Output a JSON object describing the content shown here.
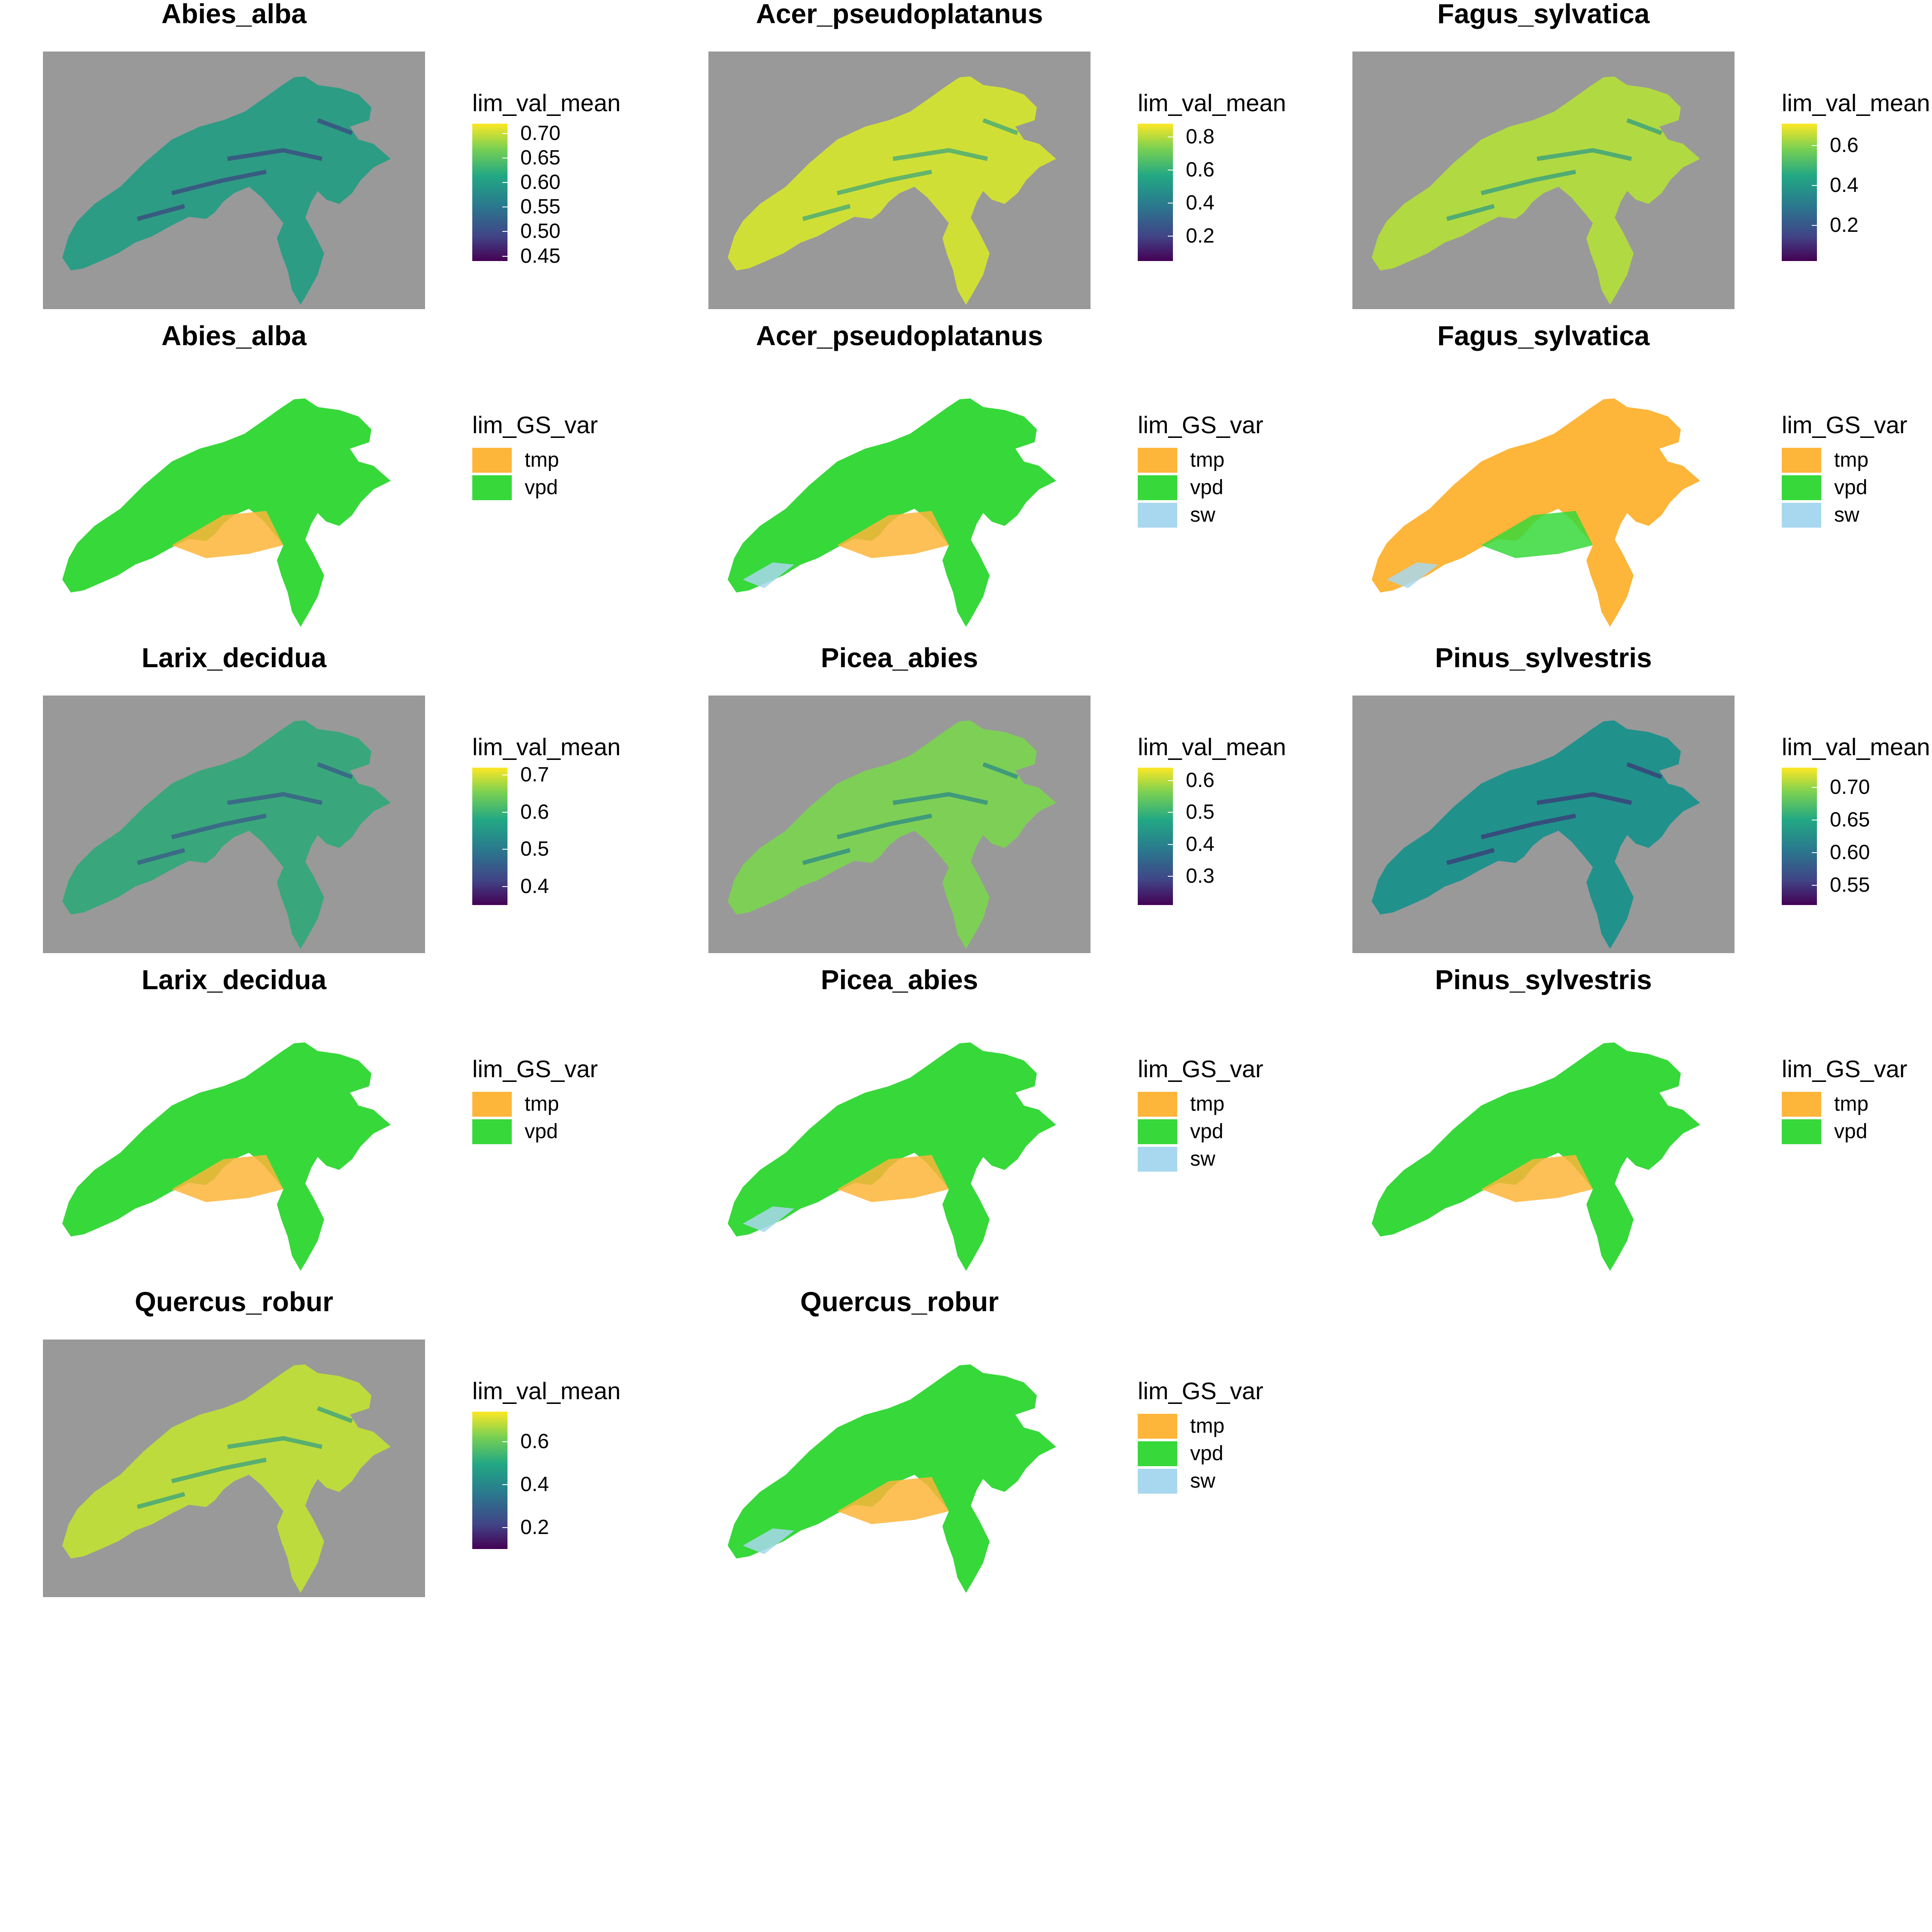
{
  "colors": {
    "tmp": "#FDB53A",
    "vpd": "#37D83A",
    "sw": "#A8D8EF",
    "background": "#999999"
  },
  "chart_data": [
    {
      "type": "heatmap",
      "title": "Abies_alba",
      "legend_title": "lim_val_mean",
      "scale": "viridis",
      "range": [
        0.44,
        0.72
      ],
      "ticks": [
        "0.70",
        "0.65",
        "0.60",
        "0.55",
        "0.50",
        "0.45"
      ],
      "tick_values": [
        0.7,
        0.65,
        0.6,
        0.55,
        0.5,
        0.45
      ],
      "color_hint": 0.55
    },
    {
      "type": "heatmap",
      "title": "Acer_pseudoplatanus",
      "legend_title": "lim_val_mean",
      "scale": "viridis",
      "range": [
        0.05,
        0.88
      ],
      "ticks": [
        "0.8",
        "0.6",
        "0.4",
        "0.2"
      ],
      "tick_values": [
        0.8,
        0.6,
        0.4,
        0.2
      ],
      "color_hint": 0.93
    },
    {
      "type": "heatmap",
      "title": "Fagus_sylvatica",
      "legend_title": "lim_val_mean",
      "scale": "viridis",
      "range": [
        0.02,
        0.71
      ],
      "ticks": [
        "0.6",
        "0.4",
        "0.2"
      ],
      "tick_values": [
        0.6,
        0.4,
        0.2
      ],
      "color_hint": 0.88
    },
    {
      "type": "categorical",
      "title": "Abies_alba",
      "legend_title": "lim_GS_var",
      "categories": [
        "tmp",
        "vpd"
      ],
      "fill": "vpd"
    },
    {
      "type": "categorical",
      "title": "Acer_pseudoplatanus",
      "legend_title": "lim_GS_var",
      "categories": [
        "tmp",
        "vpd",
        "sw"
      ],
      "fill": "vpd"
    },
    {
      "type": "categorical",
      "title": "Fagus_sylvatica",
      "legend_title": "lim_GS_var",
      "categories": [
        "tmp",
        "vpd",
        "sw"
      ],
      "fill": "tmp"
    },
    {
      "type": "heatmap",
      "title": "Larix_decidua",
      "legend_title": "lim_val_mean",
      "scale": "viridis",
      "range": [
        0.35,
        0.72
      ],
      "ticks": [
        "0.7",
        "0.6",
        "0.5",
        "0.4"
      ],
      "tick_values": [
        0.7,
        0.6,
        0.5,
        0.4
      ],
      "color_hint": 0.6
    },
    {
      "type": "heatmap",
      "title": "Picea_abies",
      "legend_title": "lim_val_mean",
      "scale": "viridis",
      "range": [
        0.21,
        0.64
      ],
      "ticks": [
        "0.6",
        "0.5",
        "0.4",
        "0.3"
      ],
      "tick_values": [
        0.6,
        0.5,
        0.4,
        0.3
      ],
      "color_hint": 0.8
    },
    {
      "type": "heatmap",
      "title": "Pinus_sylvestris",
      "legend_title": "lim_val_mean",
      "scale": "viridis",
      "range": [
        0.52,
        0.73
      ],
      "ticks": [
        "0.70",
        "0.65",
        "0.60",
        "0.55"
      ],
      "tick_values": [
        0.7,
        0.65,
        0.6,
        0.55
      ],
      "color_hint": 0.5
    },
    {
      "type": "categorical",
      "title": "Larix_decidua",
      "legend_title": "lim_GS_var",
      "categories": [
        "tmp",
        "vpd"
      ],
      "fill": "vpd"
    },
    {
      "type": "categorical",
      "title": "Picea_abies",
      "legend_title": "lim_GS_var",
      "categories": [
        "tmp",
        "vpd",
        "sw"
      ],
      "fill": "vpd"
    },
    {
      "type": "categorical",
      "title": "Pinus_sylvestris",
      "legend_title": "lim_GS_var",
      "categories": [
        "tmp",
        "vpd"
      ],
      "fill": "vpd"
    },
    {
      "type": "heatmap",
      "title": "Quercus_robur",
      "legend_title": "lim_val_mean",
      "scale": "viridis",
      "range": [
        0.1,
        0.74
      ],
      "ticks": [
        "0.6",
        "0.4",
        "0.2"
      ],
      "tick_values": [
        0.6,
        0.4,
        0.2
      ],
      "color_hint": 0.9
    },
    {
      "type": "categorical",
      "title": "Quercus_robur",
      "legend_title": "lim_GS_var",
      "categories": [
        "tmp",
        "vpd",
        "sw"
      ],
      "fill": "vpd"
    }
  ]
}
